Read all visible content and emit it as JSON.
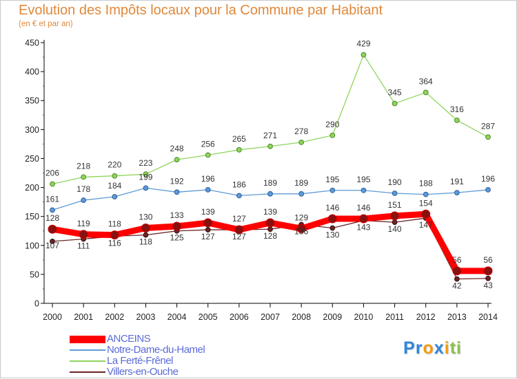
{
  "header": {
    "title": "Evolution des Impôts locaux pour la Commune par Habitant",
    "subtitle": "(en € et par an)"
  },
  "chart_data": {
    "type": "line",
    "title": "Evolution des Impôts locaux pour la Commune par Habitant",
    "subtitle": "(en € et par an)",
    "xlabel": "",
    "ylabel": "",
    "ylim": [
      0,
      450
    ],
    "yticks": [
      0,
      50,
      100,
      150,
      200,
      250,
      300,
      350,
      400,
      450
    ],
    "grid": false,
    "legend_position": "bottom-left",
    "categories": [
      "2000",
      "2001",
      "2002",
      "2003",
      "2004",
      "2005",
      "2006",
      "2007",
      "2008",
      "2009",
      "2010",
      "2011",
      "2012",
      "2013",
      "2014"
    ],
    "series": [
      {
        "name": "ANCEINS",
        "color": "#ff0000",
        "values": [
          128,
          119,
          118,
          130,
          133,
          139,
          127,
          139,
          129,
          146,
          146,
          151,
          154,
          56,
          56
        ]
      },
      {
        "name": "Notre-Dame-du-Hamel",
        "color": "#6aa0d8",
        "values": [
          161,
          178,
          184,
          199,
          192,
          196,
          186,
          189,
          189,
          195,
          195,
          190,
          188,
          191,
          196
        ]
      },
      {
        "name": "La Ferté-Frênel",
        "color": "#88cc55",
        "values": [
          206,
          218,
          220,
          223,
          248,
          256,
          265,
          271,
          278,
          290,
          429,
          345,
          364,
          316,
          287
        ]
      },
      {
        "name": "Villers-en-Ouche",
        "color": "#7a2a2a",
        "values": [
          107,
          111,
          116,
          118,
          125,
          127,
          127,
          128,
          136,
          130,
          143,
          140,
          147,
          42,
          43
        ]
      }
    ]
  },
  "logo": {
    "letters": [
      "P",
      "r",
      "o",
      "x",
      "i",
      "t",
      "i"
    ],
    "colors": [
      "#2e86de",
      "#2e86de",
      "#f39c12",
      "#2e86de",
      "#f39c12",
      "#8bc34a",
      "#8bc34a"
    ]
  }
}
